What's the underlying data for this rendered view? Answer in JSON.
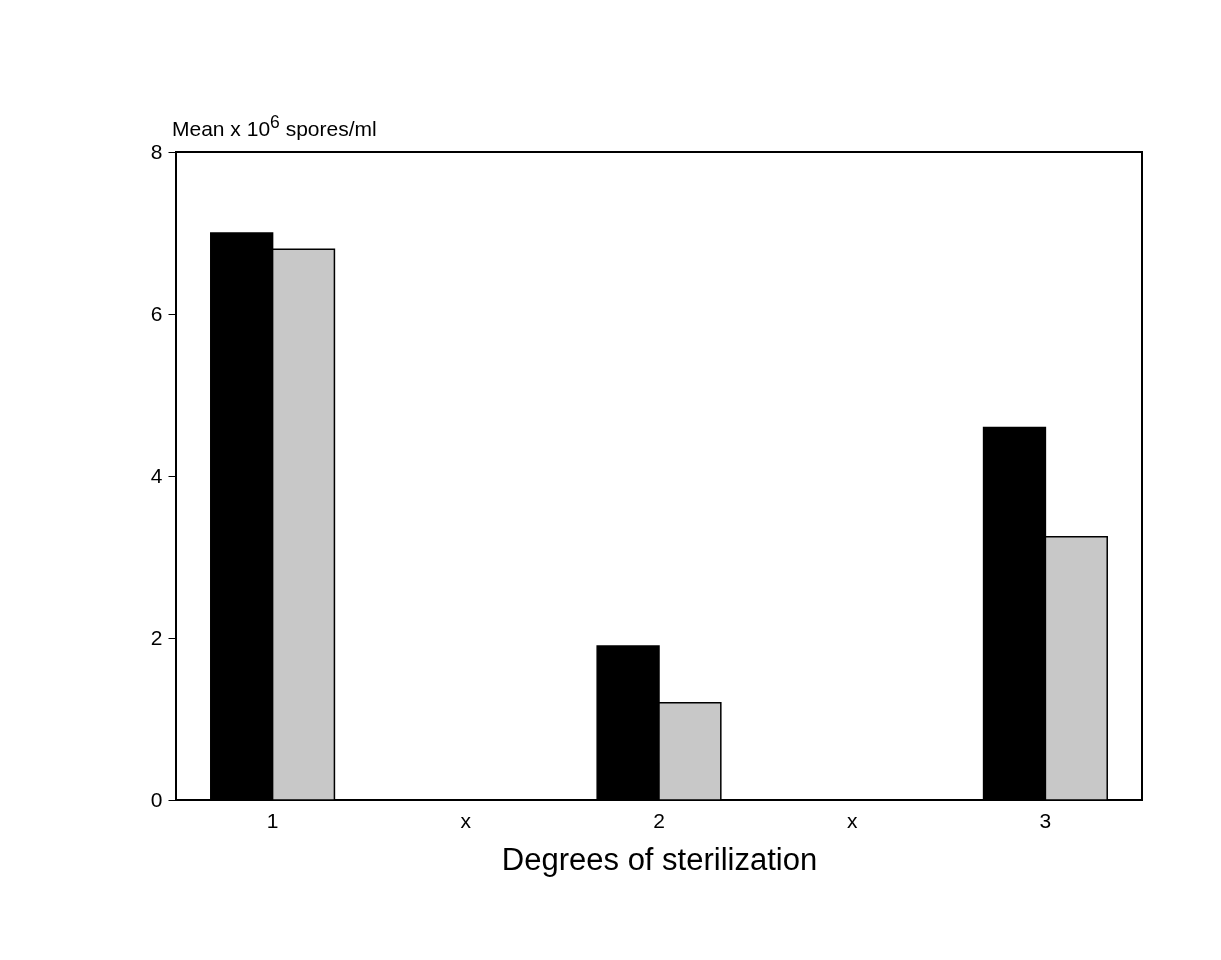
{
  "chart_data": {
    "type": "bar",
    "xlabel": "Degrees of sterilization",
    "ylabel": "Mean x 10$^{6}$ spores/ml",
    "categories": [
      "1",
      "x",
      "2",
      "x",
      "3"
    ],
    "series": [
      {
        "color": "#000000",
        "values": [
          7.0,
          null,
          1.9,
          null,
          4.6
        ]
      },
      {
        "color": "#c8c8c8",
        "values": [
          6.8,
          null,
          1.2,
          null,
          3.25
        ]
      }
    ],
    "ylim": [
      0,
      8
    ],
    "yticks": [
      0,
      2,
      4,
      6,
      8
    ],
    "grid": false,
    "legend": false
  }
}
